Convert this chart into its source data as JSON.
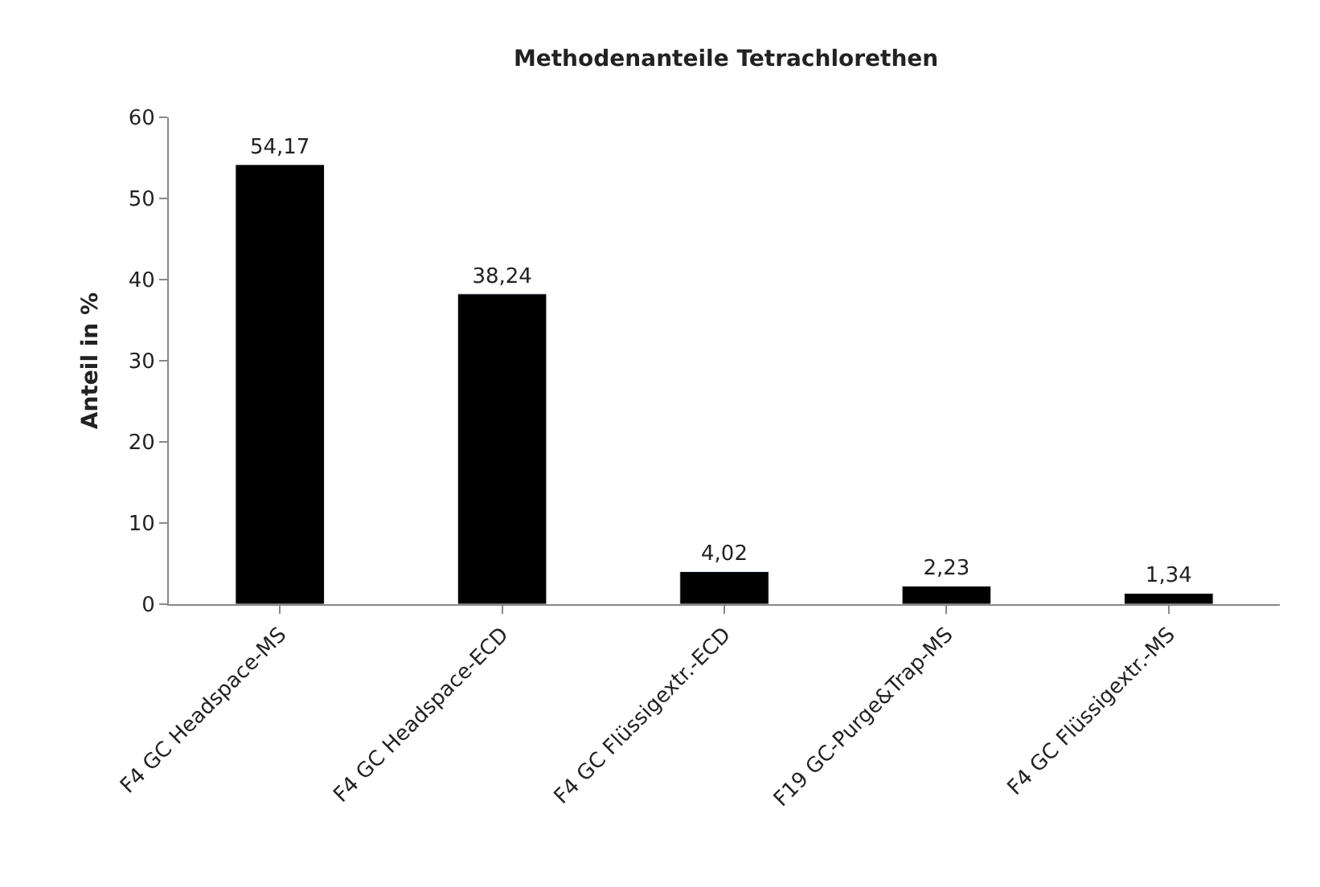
{
  "chart_data": {
    "type": "bar",
    "title": "Methodenanteile Tetrachlorethen",
    "ylabel": "Anteil in %",
    "categories": [
      "F4 GC Headspace-MS",
      "F4 GC Headspace-ECD",
      "F4 GC Flüssigextr.-ECD",
      "F19 GC-Purge&Trap-MS",
      "F4 GC Flüssigextr.-MS"
    ],
    "values": [
      54.17,
      38.24,
      4.02,
      2.23,
      1.34
    ],
    "value_labels": [
      "54,17",
      "38,24",
      "4,02",
      "2,23",
      "1,34"
    ],
    "color": "#000000",
    "ylim": [
      0,
      60
    ],
    "yticks": [
      0,
      10,
      20,
      30,
      40,
      50,
      60
    ],
    "grid": false,
    "legend": false
  }
}
